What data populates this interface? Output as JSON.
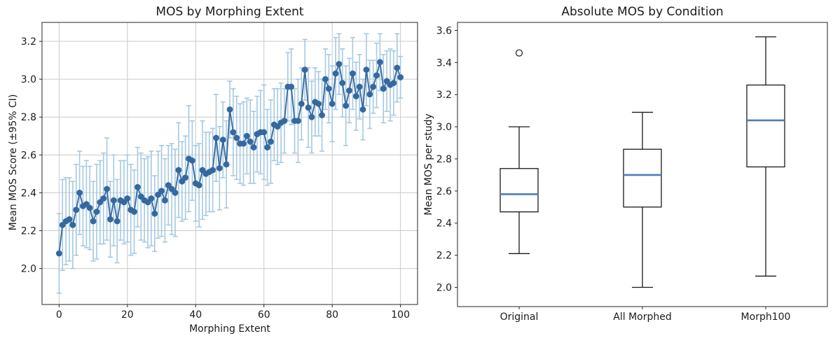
{
  "figure": {
    "background": "#ffffff"
  },
  "chart_data": [
    {
      "type": "line",
      "title": "MOS by Morphing Extent",
      "xlabel": "Morphing Extent",
      "ylabel": "Mean MOS Score (±95% CI)",
      "xlim": [
        -5,
        105
      ],
      "ylim": [
        1.81,
        3.3
      ],
      "xticks": [
        0,
        20,
        40,
        60,
        80,
        100
      ],
      "yticks": [
        2.0,
        2.2,
        2.4,
        2.6,
        2.8,
        3.0,
        3.2
      ],
      "grid": true,
      "legend": "none",
      "colors": {
        "line": "#35689e",
        "errorbar": "#a5c9e1",
        "grid": "#c9c9c9",
        "spine": "#262626"
      },
      "x": [
        0,
        1,
        2,
        3,
        4,
        5,
        6,
        7,
        8,
        9,
        10,
        11,
        12,
        13,
        14,
        15,
        16,
        17,
        18,
        19,
        20,
        21,
        22,
        23,
        24,
        25,
        26,
        27,
        28,
        29,
        30,
        31,
        32,
        33,
        34,
        35,
        36,
        37,
        38,
        39,
        40,
        41,
        42,
        43,
        44,
        45,
        46,
        47,
        48,
        49,
        50,
        51,
        52,
        53,
        54,
        55,
        56,
        57,
        58,
        59,
        60,
        61,
        62,
        63,
        64,
        65,
        66,
        67,
        68,
        69,
        70,
        71,
        72,
        73,
        74,
        75,
        76,
        77,
        78,
        79,
        80,
        81,
        82,
        83,
        84,
        85,
        86,
        87,
        88,
        89,
        90,
        91,
        92,
        93,
        94,
        95,
        96,
        97,
        98,
        99,
        100
      ],
      "y": [
        2.08,
        2.23,
        2.25,
        2.26,
        2.23,
        2.31,
        2.4,
        2.33,
        2.34,
        2.32,
        2.25,
        2.3,
        2.35,
        2.37,
        2.42,
        2.26,
        2.36,
        2.25,
        2.36,
        2.35,
        2.37,
        2.31,
        2.3,
        2.43,
        2.38,
        2.36,
        2.35,
        2.37,
        2.29,
        2.39,
        2.41,
        2.36,
        2.44,
        2.42,
        2.4,
        2.52,
        2.46,
        2.48,
        2.58,
        2.57,
        2.45,
        2.44,
        2.52,
        2.5,
        2.51,
        2.52,
        2.69,
        2.53,
        2.68,
        2.55,
        2.84,
        2.72,
        2.69,
        2.66,
        2.66,
        2.7,
        2.67,
        2.64,
        2.71,
        2.72,
        2.72,
        2.64,
        2.67,
        2.76,
        2.75,
        2.77,
        2.78,
        2.96,
        2.96,
        2.78,
        2.78,
        2.87,
        3.05,
        2.85,
        2.8,
        2.88,
        2.87,
        2.81,
        3.0,
        2.95,
        2.87,
        3.03,
        3.08,
        2.98,
        2.86,
        2.94,
        3.03,
        2.91,
        2.96,
        2.84,
        3.05,
        2.92,
        2.96,
        3.02,
        3.09,
        2.95,
        2.99,
        2.97,
        2.98,
        3.06,
        3.01
      ],
      "ci95_half": [
        0.21,
        0.24,
        0.23,
        0.22,
        0.23,
        0.24,
        0.22,
        0.21,
        0.23,
        0.22,
        0.21,
        0.25,
        0.22,
        0.24,
        0.27,
        0.2,
        0.24,
        0.22,
        0.21,
        0.22,
        0.23,
        0.24,
        0.22,
        0.21,
        0.23,
        0.22,
        0.24,
        0.25,
        0.2,
        0.23,
        0.24,
        0.22,
        0.21,
        0.24,
        0.23,
        0.25,
        0.21,
        0.22,
        0.28,
        0.21,
        0.2,
        0.22,
        0.26,
        0.22,
        0.21,
        0.22,
        0.23,
        0.22,
        0.2,
        0.23,
        0.15,
        0.23,
        0.22,
        0.21,
        0.22,
        0.2,
        0.22,
        0.19,
        0.2,
        0.22,
        0.25,
        0.2,
        0.22,
        0.19,
        0.2,
        0.21,
        0.17,
        0.18,
        0.2,
        0.17,
        0.22,
        0.19,
        0.16,
        0.21,
        0.19,
        0.18,
        0.17,
        0.19,
        0.16,
        0.18,
        0.2,
        0.19,
        0.16,
        0.18,
        0.21,
        0.17,
        0.19,
        0.18,
        0.17,
        0.16,
        0.19,
        0.18,
        0.14,
        0.17,
        0.15,
        0.18,
        0.16,
        0.19,
        0.17,
        0.18,
        0.11
      ]
    },
    {
      "type": "box",
      "title": "Absolute MOS by Condition",
      "xlabel": "",
      "ylabel": "Mean MOS per study",
      "categories": [
        "Original",
        "All Morphed",
        "Morph100"
      ],
      "ylim": [
        1.88,
        3.65
      ],
      "yticks": [
        2.0,
        2.2,
        2.4,
        2.6,
        2.8,
        3.0,
        3.2,
        3.4,
        3.6
      ],
      "grid": false,
      "colors": {
        "box": "#1a1a1a",
        "median": "#4a7ebb",
        "spine": "#262626"
      },
      "boxes": [
        {
          "label": "Original",
          "whisker_low": 2.21,
          "q1": 2.47,
          "median": 2.58,
          "q3": 2.74,
          "whisker_high": 3.0,
          "outliers": [
            3.46
          ]
        },
        {
          "label": "All Morphed",
          "whisker_low": 2.0,
          "q1": 2.5,
          "median": 2.7,
          "q3": 2.86,
          "whisker_high": 3.09,
          "outliers": []
        },
        {
          "label": "Morph100",
          "whisker_low": 2.07,
          "q1": 2.75,
          "median": 3.04,
          "q3": 3.26,
          "whisker_high": 3.56,
          "outliers": []
        }
      ]
    }
  ]
}
